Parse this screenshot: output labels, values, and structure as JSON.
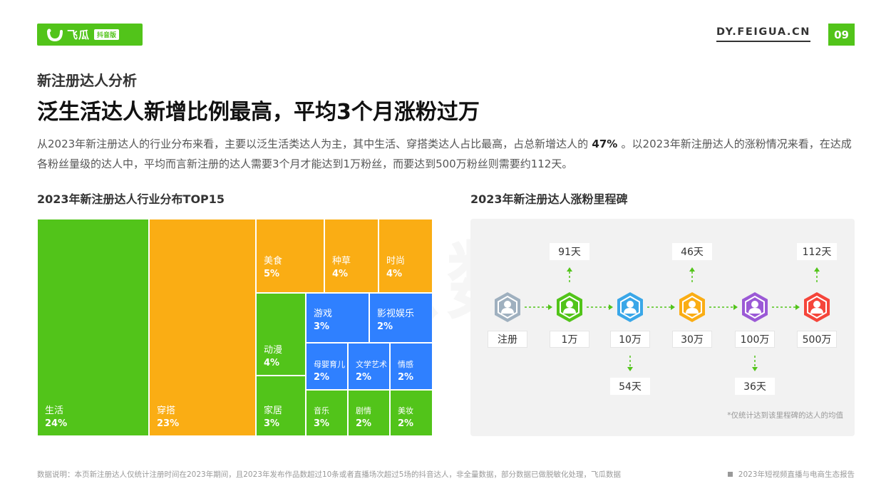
{
  "header": {
    "logo_text": "飞瓜",
    "logo_badge": "抖音版",
    "site": "DY.FEIGUA.CN",
    "page_number": "09"
  },
  "section_title": "新注册达人分析",
  "headline": "泛生活达人新增比例最高，平均3个月涨粉过万",
  "description": {
    "part1": "从2023年新注册达人的行业分布来看，主要以泛生活类达人为主，其中生活、穿搭类达人占比最高，占总新增达人的",
    "highlight": " 47% ",
    "part2": "。以2023年新注册达人的涨粉情况来看，在达成各粉丝量级的达人中，平均而言新注册的达人需要3个月才能达到1万粉丝，而要达到500万粉丝则需要约112天。"
  },
  "treemap_title": "2023年新注册达人行业分布TOP15",
  "milestone_title": "2023年新注册达人涨粉里程碑",
  "chart_data": [
    {
      "type": "treemap",
      "title": "2023年新注册达人行业分布TOP15",
      "categories": [
        "生活",
        "穿搭",
        "美食",
        "种草",
        "时尚",
        "动漫",
        "游戏",
        "影视娱乐",
        "母婴育儿",
        "文学艺术",
        "情感",
        "家居",
        "音乐",
        "剧情",
        "美妆"
      ],
      "values": [
        24,
        23,
        5,
        4,
        4,
        4,
        3,
        2,
        2,
        2,
        2,
        3,
        3,
        2,
        2
      ],
      "labels": [
        "24%",
        "23%",
        "5%",
        "4%",
        "4%",
        "4%",
        "3%",
        "2%",
        "2%",
        "2%",
        "2%",
        "3%",
        "3%",
        "2%",
        "2%"
      ],
      "colors": [
        "#52c41a",
        "#faad14",
        "#faad14",
        "#faad14",
        "#faad14",
        "#52c41a",
        "#2f80ff",
        "#2f80ff",
        "#2f80ff",
        "#2f80ff",
        "#2f80ff",
        "#52c41a",
        "#52c41a",
        "#52c41a",
        "#52c41a"
      ]
    },
    {
      "type": "milestone",
      "title": "2023年新注册达人涨粉里程碑",
      "stages": [
        "注册",
        "1万",
        "10万",
        "30万",
        "100万",
        "500万"
      ],
      "days": [
        null,
        "91天",
        "54天",
        "46天",
        "36天",
        "112天"
      ],
      "colors": [
        "#9fb0bf",
        "#52c41a",
        "#3aa7e8",
        "#faad14",
        "#9b59d6",
        "#f5453a"
      ],
      "note": "*仅统计达到该里程碑的达人的均值"
    }
  ],
  "footer": {
    "source": "数据说明：本页新注册达人仅统计注册时间在2023年期间，且2023年发布作品数超过10条或者直播场次超过5场的抖音达人，非全量数据，部分数据已做脱敏化处理，飞瓜数据",
    "report": "2023年短视频直播与电商生态报告"
  },
  "watermark": "飞瓜数据"
}
